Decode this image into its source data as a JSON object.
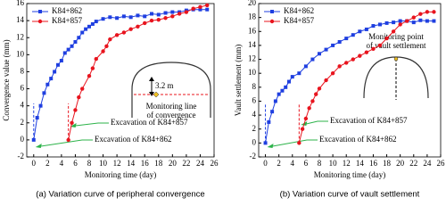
{
  "chart_data": [
    {
      "type": "line",
      "caption": "(a) Variation curve of peripheral convergence",
      "xlabel": "Monitoring time (day)",
      "ylabel": "Convergence value (mm)",
      "xlim": [
        -1,
        26
      ],
      "xticks": [
        0,
        2,
        4,
        6,
        8,
        10,
        12,
        14,
        16,
        18,
        20,
        22,
        24,
        26
      ],
      "ylim": [
        -2,
        16
      ],
      "yticks": [
        -2,
        0,
        2,
        4,
        6,
        8,
        10,
        12,
        14,
        16
      ],
      "legend": "upper left",
      "annotations": [
        "3.2 m",
        "Monitoring line",
        "of convergence",
        "Excavation of K84+857",
        "Excavation of K84+862"
      ],
      "series": [
        {
          "name": "K84+862",
          "color": "#1f3fe0",
          "marker": "square",
          "x": [
            0,
            0.5,
            1,
            1.5,
            2,
            2.5,
            3,
            3.5,
            4,
            4.5,
            5,
            5.5,
            6,
            6.5,
            7,
            7.5,
            8,
            8.5,
            9,
            10,
            11,
            12,
            13,
            14,
            15,
            16,
            17,
            18,
            19,
            20,
            21,
            22,
            23,
            24,
            25
          ],
          "values": [
            0,
            2.6,
            4,
            5.5,
            6.5,
            7.2,
            8,
            8.8,
            9.3,
            10.2,
            10.6,
            11,
            11.5,
            12,
            12.6,
            13,
            13.3,
            13.6,
            13.9,
            14.2,
            14.4,
            14.3,
            14.5,
            14.4,
            14.6,
            14.5,
            14.8,
            14.7,
            14.9,
            15,
            15,
            15.2,
            15.3,
            15.3,
            15.3
          ]
        },
        {
          "name": "K84+857",
          "color": "#e8141e",
          "marker": "circle",
          "x": [
            5,
            5.5,
            6,
            6.5,
            7,
            8,
            8.5,
            9,
            10,
            10.5,
            11,
            12,
            13,
            14,
            15,
            16,
            17,
            18,
            19,
            20,
            21,
            22,
            23,
            24,
            25
          ],
          "values": [
            0,
            2,
            3.5,
            5,
            6,
            7.5,
            8.4,
            9.5,
            10.4,
            11,
            11.8,
            12.3,
            12.6,
            13,
            13.3,
            13.7,
            14,
            14.1,
            14.3,
            14.5,
            14.8,
            15,
            15.4,
            15.6,
            15.8
          ]
        }
      ]
    },
    {
      "type": "line",
      "caption": "(b) Variation curve of vault settlement",
      "xlabel": "Monitoring time (day)",
      "ylabel": "Vault settlement (mm)",
      "xlim": [
        -1,
        26
      ],
      "xticks": [
        0,
        2,
        4,
        6,
        8,
        10,
        12,
        14,
        16,
        18,
        20,
        22,
        24,
        26
      ],
      "ylim": [
        -2,
        20
      ],
      "yticks": [
        -2,
        0,
        2,
        4,
        6,
        8,
        10,
        12,
        14,
        16,
        18,
        20
      ],
      "legend": "upper left",
      "annotations": [
        "Monitoring point",
        "of vault settlement",
        "Excavation of K84+857",
        "Excavation of K84+862"
      ],
      "series": [
        {
          "name": "K84+862",
          "color": "#1f3fe0",
          "marker": "square",
          "x": [
            0,
            0.5,
            1,
            1.5,
            2,
            2.5,
            3,
            3.5,
            4,
            5,
            6,
            7,
            8,
            9,
            10,
            11,
            12,
            13,
            14,
            15,
            16,
            17,
            18,
            19,
            20,
            21,
            22,
            23,
            24,
            25
          ],
          "values": [
            0,
            3,
            4.5,
            6,
            7,
            7.5,
            8,
            8.8,
            9.5,
            10,
            11,
            12,
            12.8,
            13.4,
            14,
            14.5,
            15,
            15.5,
            16,
            16.3,
            16.8,
            17,
            17.2,
            17.3,
            17.5,
            17.5,
            17.3,
            17.6,
            17.5,
            17.5
          ]
        },
        {
          "name": "K84+857",
          "color": "#e8141e",
          "marker": "circle",
          "x": [
            5,
            5.5,
            6,
            6.5,
            7,
            7.5,
            8,
            9,
            10,
            11,
            12,
            13,
            14,
            15,
            16,
            17,
            18,
            19,
            20,
            21,
            22,
            23,
            24,
            25
          ],
          "values": [
            0,
            2,
            3.5,
            5,
            6,
            7,
            7.8,
            9,
            10,
            11,
            11.5,
            12,
            12.5,
            13,
            13.5,
            14,
            15,
            16,
            17,
            17.5,
            18,
            18.5,
            18.8,
            18.8
          ]
        }
      ]
    }
  ]
}
